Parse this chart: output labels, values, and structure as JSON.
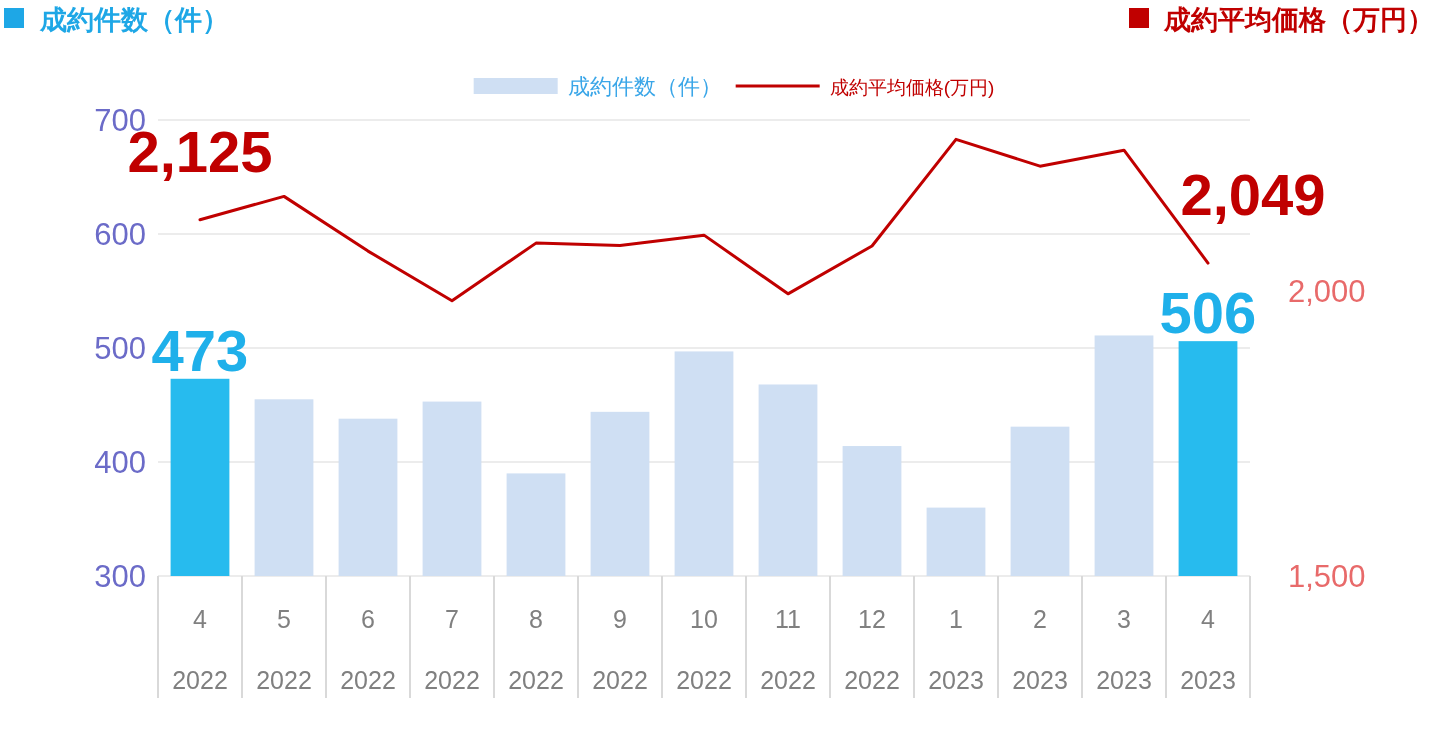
{
  "chart_data": {
    "type": "bar",
    "ylabel": "成約件数（件）",
    "y2label": "成約平均価格（万円）",
    "categories": [
      "4\n2022",
      "5\n2022",
      "6\n2022",
      "7\n2022",
      "8\n2022",
      "9\n2022",
      "10\n2022",
      "11\n2022",
      "12\n2022",
      "1\n2023",
      "2\n2023",
      "3\n2023",
      "4\n2023"
    ],
    "series": [
      {
        "name": "成約件数（件）",
        "color": "#cfdff3",
        "colors": [
          "#27bbee",
          "#cfdff3",
          "#cfdff3",
          "#cfdff3",
          "#cfdff3",
          "#cfdff3",
          "#cfdff3",
          "#cfdff3",
          "#cfdff3",
          "#cfdff3",
          "#cfdff3",
          "#cfdff3",
          "#27bbee"
        ],
        "values": [
          473,
          455,
          438,
          453,
          390,
          444,
          497,
          468,
          414,
          360,
          431,
          511,
          506
        ],
        "value_labels": [
          "473",
          null,
          null,
          null,
          null,
          null,
          null,
          null,
          null,
          null,
          null,
          null,
          "506"
        ]
      },
      {
        "name": "成約平均価格(万円)",
        "type": "line",
        "axis": "y2",
        "color": "#c00000",
        "values": [
          2125,
          2166,
          2070,
          1983,
          2084,
          2080,
          2098,
          1995,
          2079,
          2266,
          2219,
          2247,
          2049
        ],
        "value_labels": [
          "2,125",
          null,
          null,
          null,
          null,
          null,
          null,
          null,
          null,
          null,
          null,
          null,
          "2,049"
        ]
      }
    ],
    "ylim": [
      300,
      700
    ],
    "yticks": [
      300,
      400,
      500,
      600,
      700
    ],
    "y2lim": [
      1500,
      2300
    ],
    "y2ticks": [
      {
        "value": 1500,
        "label": "1,500"
      },
      {
        "value": 2000,
        "label": "2,000"
      }
    ],
    "grid": "y",
    "legend": "top"
  }
}
